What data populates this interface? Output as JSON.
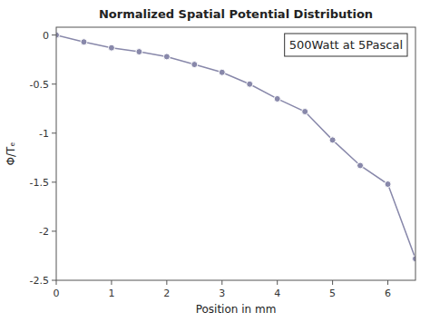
{
  "chart_data": {
    "type": "line",
    "title": "Normalized Spatial Potential Distribution",
    "x_label": "Position in mm",
    "y_label": "Φ/Tₑ",
    "annotation": "500Watt at 5Pascal",
    "x": [
      0,
      0.5,
      1.0,
      1.5,
      2.0,
      2.5,
      3.0,
      3.5,
      4.0,
      4.5,
      5.0,
      5.5,
      6.0,
      6.5
    ],
    "values": [
      0.0,
      -0.07,
      -0.13,
      -0.17,
      -0.22,
      -0.3,
      -0.38,
      -0.5,
      -0.65,
      -0.78,
      -1.07,
      -1.33,
      -1.52,
      -2.28
    ],
    "color": "#8888aa",
    "marker": "circle",
    "xlim": [
      0,
      6.5
    ],
    "ylim": [
      -2.5,
      0.08
    ],
    "xticks": [
      0,
      1,
      2,
      3,
      4,
      5,
      6
    ],
    "yticks": [
      0,
      -0.5,
      -1,
      -1.5,
      -2,
      -2.5
    ],
    "grid": false
  }
}
